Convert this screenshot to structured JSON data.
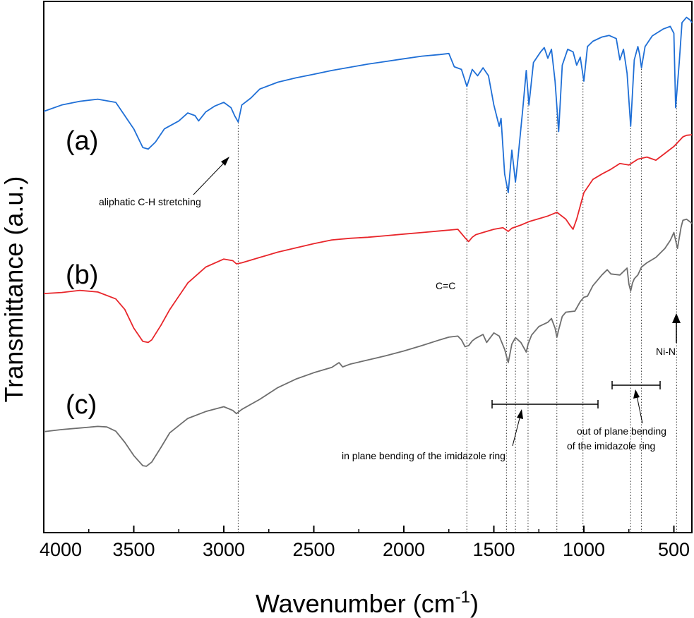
{
  "chart_data": {
    "type": "line",
    "xlabel": "Wavenumber (cm",
    "xlabel_sup": "-1",
    "xlabel_tail": ")",
    "ylabel": "Transmittance (a.u.)",
    "xlim": [
      4000,
      400
    ],
    "xlim_reversed": true,
    "ylim": [
      0,
      100
    ],
    "x_ticks": [
      4000,
      3500,
      3000,
      2500,
      2000,
      1500,
      1000,
      500
    ],
    "x_tick_labels": [
      "4000",
      "3500",
      "3000",
      "2500",
      "2000",
      "1500",
      "1000",
      "500"
    ],
    "grid": false,
    "series": [
      {
        "name": "(a)",
        "color": "#1f6fd6",
        "x": [
          4000,
          3900,
          3800,
          3700,
          3600,
          3500,
          3450,
          3420,
          3380,
          3330,
          3250,
          3200,
          3160,
          3140,
          3100,
          3050,
          3000,
          2960,
          2940,
          2920,
          2900,
          2850,
          2800,
          2700,
          2600,
          2500,
          2400,
          2300,
          2200,
          2100,
          2000,
          1900,
          1800,
          1750,
          1720,
          1680,
          1650,
          1620,
          1590,
          1560,
          1530,
          1500,
          1470,
          1460,
          1440,
          1420,
          1400,
          1380,
          1370,
          1340,
          1320,
          1305,
          1280,
          1240,
          1220,
          1200,
          1180,
          1160,
          1140,
          1120,
          1090,
          1060,
          1040,
          1020,
          1000,
          980,
          950,
          900,
          860,
          820,
          800,
          780,
          760,
          740,
          720,
          700,
          690,
          680,
          660,
          620,
          560,
          520,
          500,
          490,
          470,
          455,
          430,
          410,
          400
        ],
        "y": [
          79.3,
          80.5,
          81.2,
          81.6,
          81.0,
          76.0,
          72.5,
          72.2,
          73.5,
          76.0,
          77.5,
          79.0,
          78.5,
          77.5,
          79.2,
          80.3,
          81.0,
          80.0,
          78.5,
          77.3,
          80.5,
          81.8,
          83.5,
          84.8,
          85.6,
          86.3,
          87.0,
          87.6,
          88.2,
          88.7,
          89.2,
          89.7,
          90.0,
          90.2,
          87.7,
          87.2,
          84.0,
          87.2,
          86.0,
          87.5,
          86.0,
          80.5,
          76.5,
          78.0,
          67.5,
          64.0,
          72.0,
          66.0,
          69.0,
          79.5,
          87.0,
          80.5,
          88.5,
          90.5,
          91.3,
          89.3,
          91.0,
          85.0,
          75.5,
          88.0,
          91.0,
          90.5,
          88.0,
          89.5,
          85.0,
          91.5,
          92.5,
          93.3,
          93.6,
          93.0,
          89.0,
          91.0,
          86.5,
          76.5,
          89.0,
          91.5,
          90.0,
          87.5,
          91.5,
          93.5,
          94.8,
          95.3,
          94.0,
          80.0,
          88.5,
          96.0,
          97.0,
          96.5,
          96.0
        ]
      },
      {
        "name": "(b)",
        "color": "#e8262b",
        "x": [
          4000,
          3900,
          3800,
          3700,
          3600,
          3550,
          3500,
          3450,
          3420,
          3400,
          3350,
          3300,
          3200,
          3100,
          3000,
          2950,
          2930,
          2900,
          2800,
          2700,
          2600,
          2500,
          2400,
          2300,
          2200,
          2100,
          2000,
          1900,
          1800,
          1700,
          1660,
          1640,
          1620,
          1600,
          1550,
          1500,
          1450,
          1420,
          1400,
          1350,
          1300,
          1250,
          1200,
          1150,
          1100,
          1080,
          1060,
          1040,
          1020,
          1000,
          950,
          900,
          850,
          800,
          750,
          700,
          650,
          600,
          550,
          500,
          450,
          430,
          400
        ],
        "y": [
          45.0,
          45.2,
          45.6,
          45.3,
          44.0,
          42.0,
          38.5,
          36.0,
          35.8,
          36.3,
          39.0,
          42.0,
          47.0,
          50.0,
          51.5,
          51.2,
          50.6,
          50.8,
          51.8,
          52.8,
          53.6,
          54.4,
          55.1,
          55.4,
          55.6,
          55.9,
          56.2,
          56.5,
          56.8,
          57.1,
          55.5,
          54.8,
          55.6,
          56.1,
          56.6,
          57.1,
          57.4,
          56.7,
          57.3,
          57.9,
          58.6,
          59.1,
          59.6,
          60.3,
          59.0,
          58.0,
          57.1,
          59.0,
          61.5,
          64.0,
          66.5,
          67.5,
          68.4,
          69.5,
          69.2,
          70.3,
          70.7,
          70.1,
          71.4,
          72.7,
          74.5,
          74.8,
          74.9
        ]
      },
      {
        "name": "(c)",
        "color": "#6e6e6e",
        "x": [
          4000,
          3900,
          3800,
          3700,
          3650,
          3600,
          3550,
          3500,
          3450,
          3430,
          3400,
          3350,
          3300,
          3200,
          3100,
          3000,
          2950,
          2930,
          2900,
          2800,
          2700,
          2600,
          2500,
          2400,
          2360,
          2340,
          2300,
          2200,
          2100,
          2000,
          1900,
          1800,
          1750,
          1700,
          1680,
          1660,
          1640,
          1620,
          1600,
          1560,
          1540,
          1500,
          1470,
          1440,
          1420,
          1400,
          1380,
          1350,
          1320,
          1310,
          1290,
          1250,
          1200,
          1180,
          1160,
          1150,
          1140,
          1120,
          1100,
          1050,
          1020,
          1000,
          980,
          950,
          900,
          870,
          850,
          800,
          760,
          750,
          740,
          730,
          720,
          700,
          680,
          650,
          600,
          550,
          520,
          500,
          490,
          480,
          470,
          460,
          450,
          430,
          410,
          400
        ],
        "y": [
          19.0,
          19.4,
          19.7,
          20.0,
          19.9,
          19.1,
          17.0,
          14.5,
          12.6,
          12.5,
          13.3,
          16.0,
          18.8,
          21.5,
          22.8,
          23.7,
          23.0,
          22.4,
          23.2,
          25.1,
          27.3,
          28.9,
          30.1,
          31.1,
          32.0,
          31.2,
          31.7,
          32.5,
          33.3,
          34.2,
          35.2,
          36.3,
          36.8,
          37.0,
          36.3,
          35.0,
          35.2,
          36.1,
          36.6,
          37.3,
          35.8,
          37.6,
          37.0,
          34.5,
          32.0,
          35.5,
          36.7,
          35.8,
          34.0,
          35.5,
          37.2,
          38.8,
          39.6,
          40.3,
          38.5,
          36.8,
          38.2,
          40.7,
          41.5,
          41.7,
          43.5,
          44.3,
          44.5,
          46.5,
          48.5,
          49.5,
          48.7,
          48.5,
          49.8,
          46.8,
          45.5,
          47.0,
          47.8,
          48.5,
          50.0,
          50.8,
          51.8,
          53.5,
          55.0,
          56.5,
          55.0,
          53.5,
          55.5,
          57.5,
          58.8,
          59.0,
          58.5,
          58.2
        ]
      }
    ],
    "series_labels": [
      "(a)",
      "(b)",
      "(c)"
    ],
    "vlines": [
      2920,
      1650,
      1430,
      1380,
      1310,
      1150,
      1005,
      740,
      680,
      485
    ],
    "annotations": [
      {
        "id": "ch",
        "text": "aliphatic C-H stretching"
      },
      {
        "id": "cc",
        "text": "C=C"
      },
      {
        "id": "nin",
        "text": "Ni-N"
      },
      {
        "id": "inplane",
        "text": "in plane bending of the imidazole ring"
      },
      {
        "id": "oop1",
        "text": "out of plane bending"
      },
      {
        "id": "oop2",
        "text": "of the imidazole ring"
      }
    ]
  }
}
